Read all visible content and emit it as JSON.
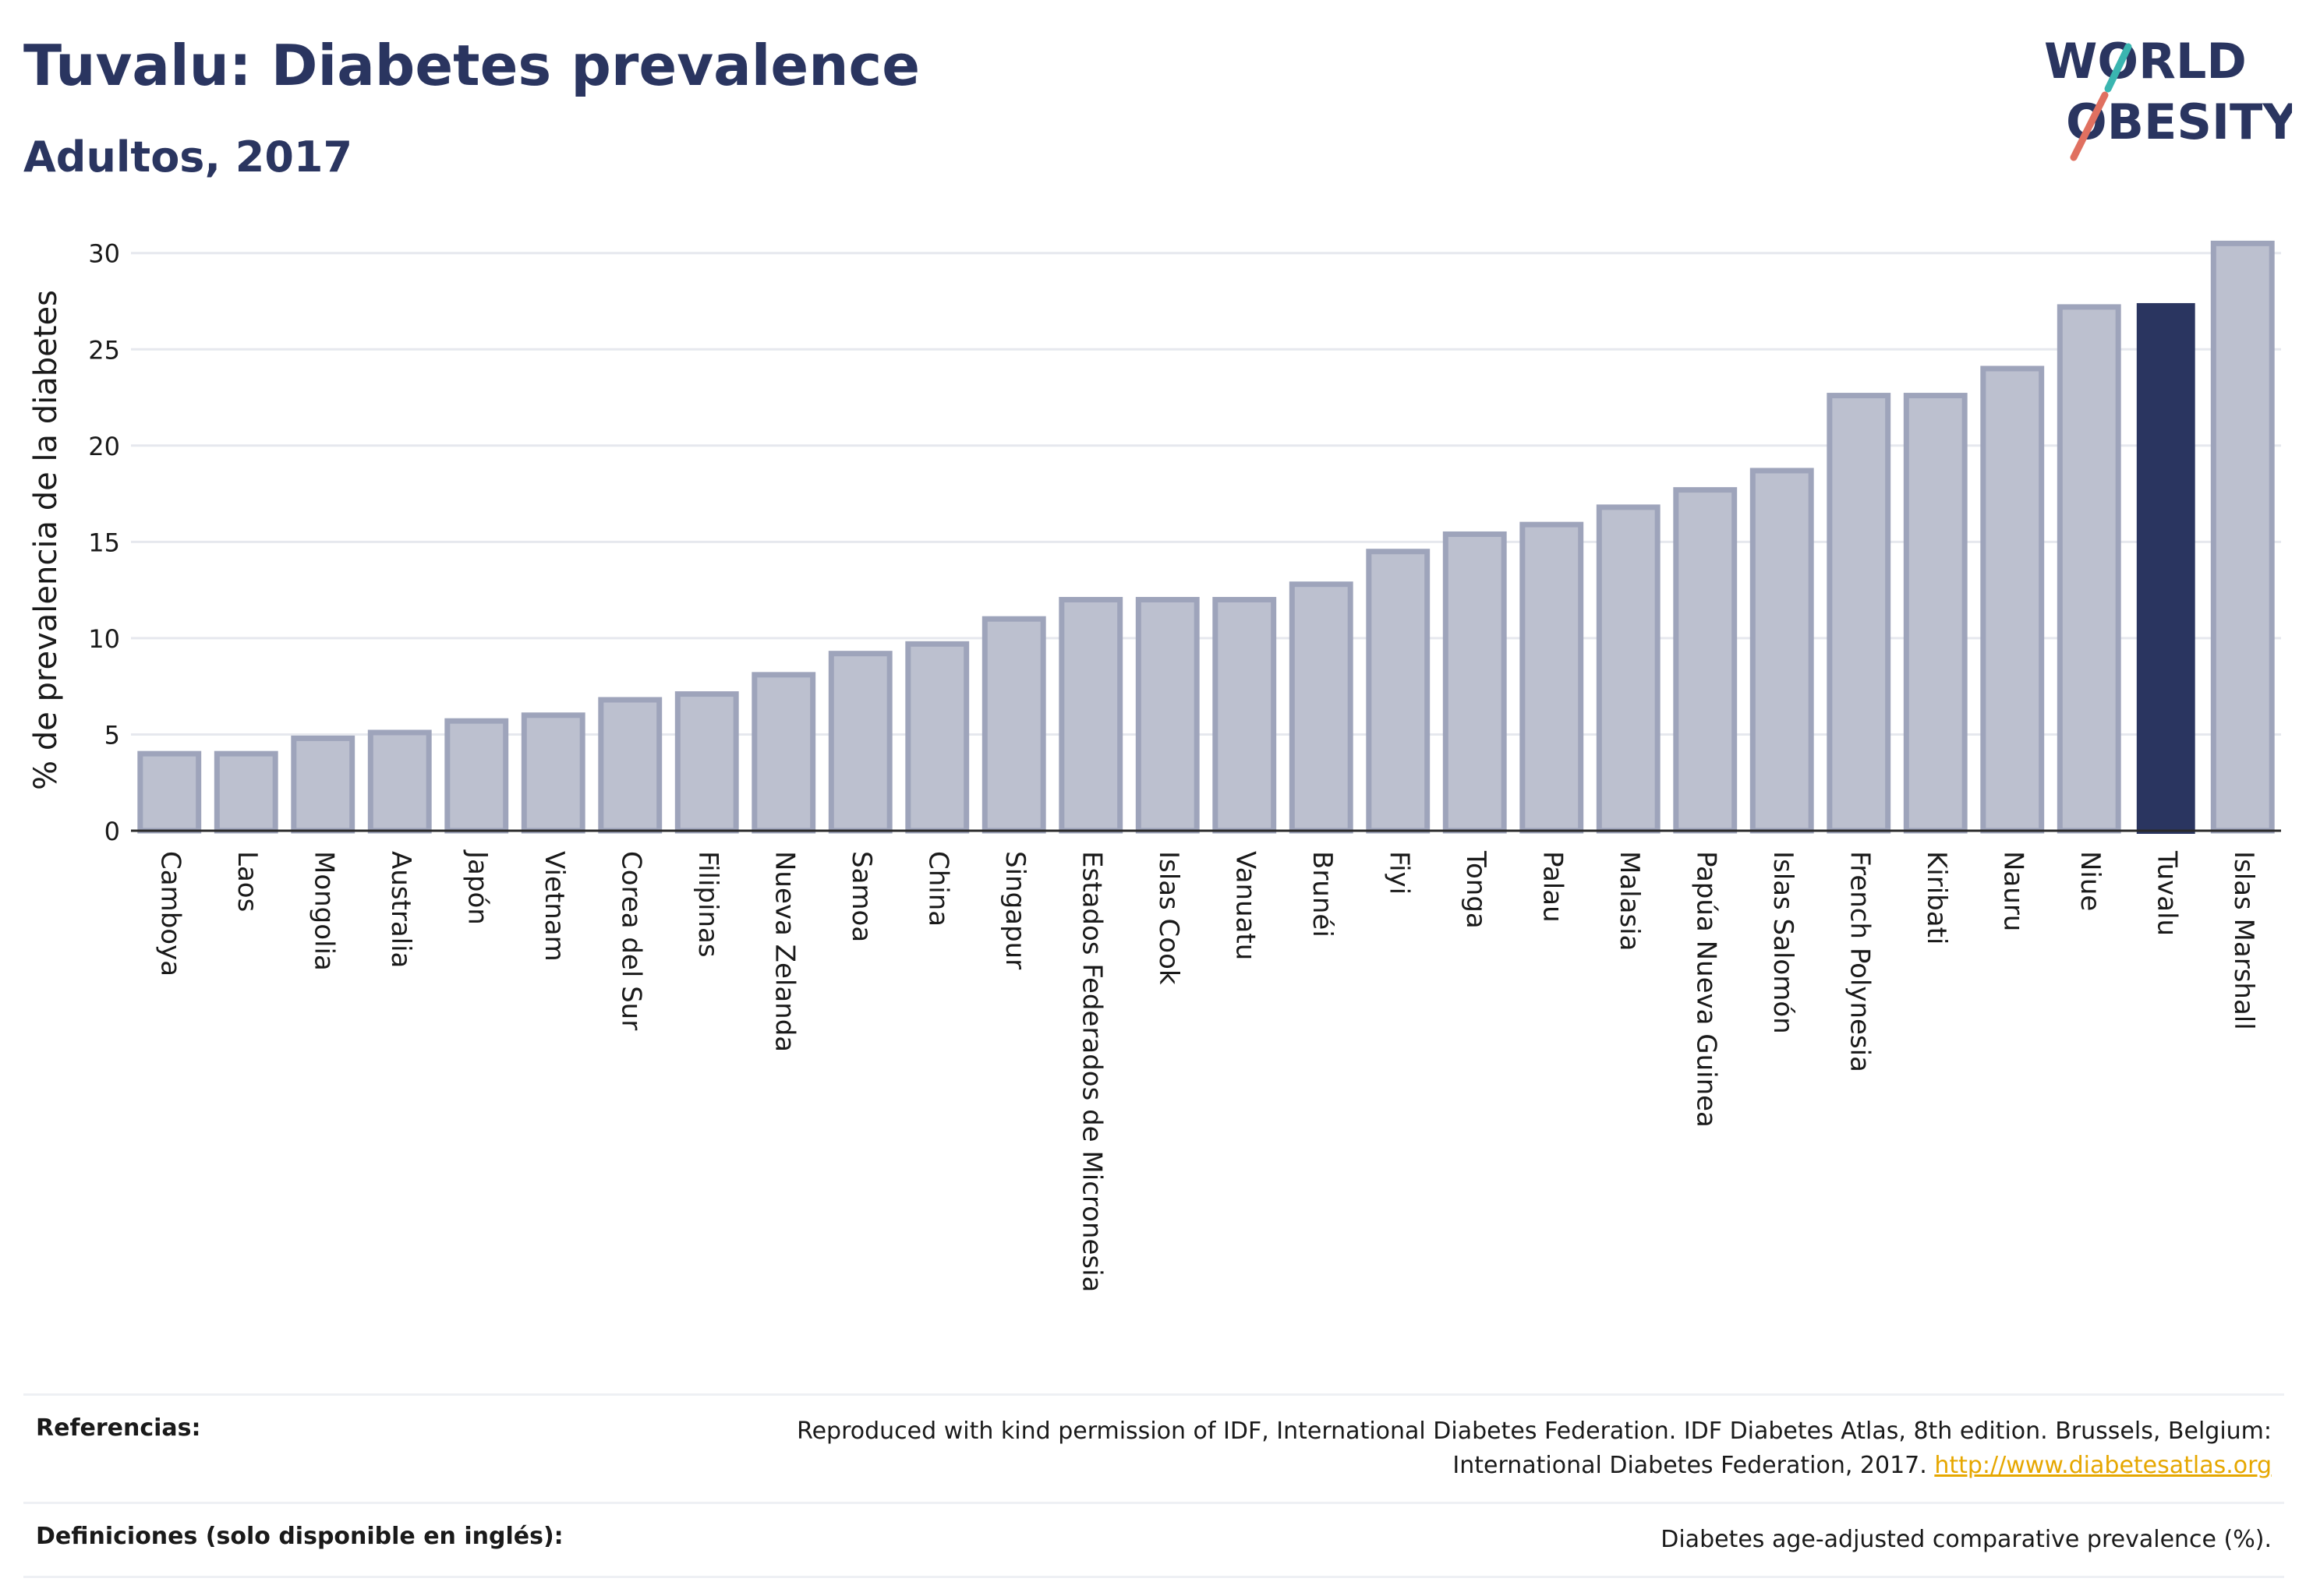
{
  "header": {
    "title": "Tuvalu: Diabetes prevalence",
    "subtitle": "Adultos, 2017"
  },
  "logo": {
    "line1": "WORLD",
    "line2": "OBESITY",
    "colors": [
      "#2a3560",
      "#e07060",
      "#3ab5b0"
    ]
  },
  "colors": {
    "bar": "#bcc0cf",
    "bar_stroke": "#9ea4bb",
    "highlight": "#2a3560",
    "grid": "#e6e8ee"
  },
  "chart_data": {
    "type": "bar",
    "ylabel": "% de prevalencia de la diabetes",
    "ylim": [
      0,
      31
    ],
    "yticks": [
      0,
      5,
      10,
      15,
      20,
      25,
      30
    ],
    "grid": true,
    "highlight": "Tuvalu",
    "categories": [
      "Camboya",
      "Laos",
      "Mongolia",
      "Australia",
      "Japón",
      "Vietnam",
      "Corea del Sur",
      "Filipinas",
      "Nueva Zelanda",
      "Samoa",
      "China",
      "Singapur",
      "Estados Federados de Micronesia",
      "Islas Cook",
      "Vanuatu",
      "Brunéi",
      "Fiyi",
      "Tonga",
      "Palau",
      "Malasia",
      "Papúa Nueva Guinea",
      "Islas Salomón",
      "French Polynesia",
      "Kiribati",
      "Nauru",
      "Niue",
      "Tuvalu",
      "Islas Marshall"
    ],
    "values": [
      4.0,
      4.0,
      4.8,
      5.1,
      5.7,
      6.0,
      6.8,
      7.1,
      8.1,
      9.2,
      9.7,
      11.0,
      12.0,
      12.0,
      12.0,
      12.8,
      14.5,
      15.4,
      15.9,
      16.8,
      17.7,
      18.7,
      22.6,
      22.6,
      24.0,
      27.2,
      27.4,
      30.5
    ]
  },
  "footer": {
    "references_label": "Referencias:",
    "references_text_1": "Reproduced with kind permission of IDF, International Diabetes Federation. IDF Diabetes Atlas, 8th edition. Brussels, Belgium:",
    "references_text_2": "International Diabetes Federation, 2017.",
    "references_link": "http://www.diabetesatlas.org",
    "definitions_label": "Definiciones (solo disponible en inglés):",
    "definitions_text": "Diabetes age-adjusted comparative prevalence (%)."
  }
}
